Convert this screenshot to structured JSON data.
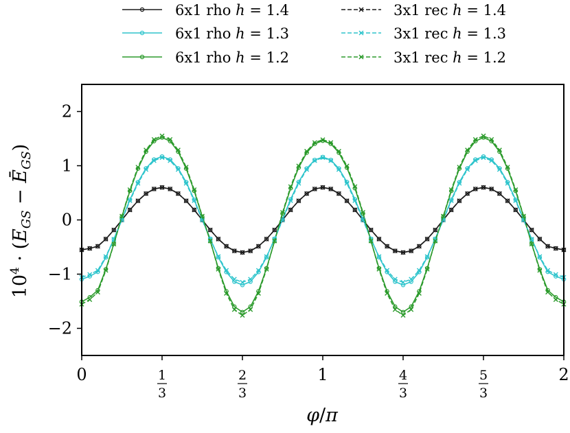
{
  "chart_data": {
    "type": "line",
    "xlabel": "φ/π",
    "ylabel": "10⁴ · (E_GS − Ē_GS)",
    "xlim": [
      0,
      2
    ],
    "ylim": [
      -2.5,
      2.5
    ],
    "x_ticks": [
      {
        "value": 0,
        "label": "0"
      },
      {
        "value": 0.3333,
        "num": "1",
        "den": "3"
      },
      {
        "value": 0.6667,
        "num": "2",
        "den": "3"
      },
      {
        "value": 1,
        "label": "1"
      },
      {
        "value": 1.3333,
        "num": "4",
        "den": "3"
      },
      {
        "value": 1.6667,
        "num": "5",
        "den": "3"
      },
      {
        "value": 2,
        "label": "2"
      }
    ],
    "y_ticks": [
      {
        "value": 2,
        "label": "2"
      },
      {
        "value": 1,
        "label": "1"
      },
      {
        "value": 0,
        "label": "0"
      },
      {
        "value": -1,
        "label": "−1"
      },
      {
        "value": -2,
        "label": "−2"
      }
    ],
    "series": [
      {
        "name": "6x1 rho h = 1.4",
        "label_text": "6x1 rho",
        "h_value": "1.4",
        "color": "#1a1a1a",
        "style": "solid",
        "marker": "circle",
        "mean": 0.0,
        "a3": 0.6,
        "c3": 1.0,
        "a6": 0.0,
        "c6": 1.0
      },
      {
        "name": "6x1 rho h = 1.3",
        "label_text": "6x1 rho",
        "h_value": "1.3",
        "color": "#2ec4cc",
        "style": "solid",
        "marker": "circle",
        "mean": 0.0,
        "a3": 1.18,
        "c3": 1.0,
        "a6": 0.02,
        "c6": 1.0
      },
      {
        "name": "6x1 rho h = 1.2",
        "label_text": "6x1 rho",
        "h_value": "1.2",
        "color": "#2b9a2b",
        "style": "solid",
        "marker": "circle",
        "mean": 0.0,
        "a3": 1.58,
        "c3": 0.99,
        "a6": 0.12,
        "c6": 0.97
      },
      {
        "name": "3x1 rec h = 1.4",
        "label_text": "3x1 rec",
        "h_value": "1.4",
        "color": "#1a1a1a",
        "style": "dashed",
        "marker": "x",
        "mean": 0.0,
        "a3": 0.6,
        "c3": 1.0,
        "a6": 0.0,
        "c6": 1.0
      },
      {
        "name": "3x1 rec h = 1.3",
        "label_text": "3x1 rec",
        "h_value": "1.3",
        "color": "#2ec4cc",
        "style": "dashed",
        "marker": "x",
        "mean": 0.0,
        "a3": 1.15,
        "c3": 0.98,
        "a6": 0.0,
        "c6": 1.0
      },
      {
        "name": "3x1 rec h = 1.2",
        "label_text": "3x1 rec",
        "h_value": "1.2",
        "color": "#2b9a2b",
        "style": "dashed",
        "marker": "x",
        "mean": 0.0,
        "a3": 1.62,
        "c3": 0.94,
        "a6": 0.14,
        "c6": 0.94
      }
    ],
    "n_points": 61,
    "legend_location": "top (above axes), two columns"
  }
}
